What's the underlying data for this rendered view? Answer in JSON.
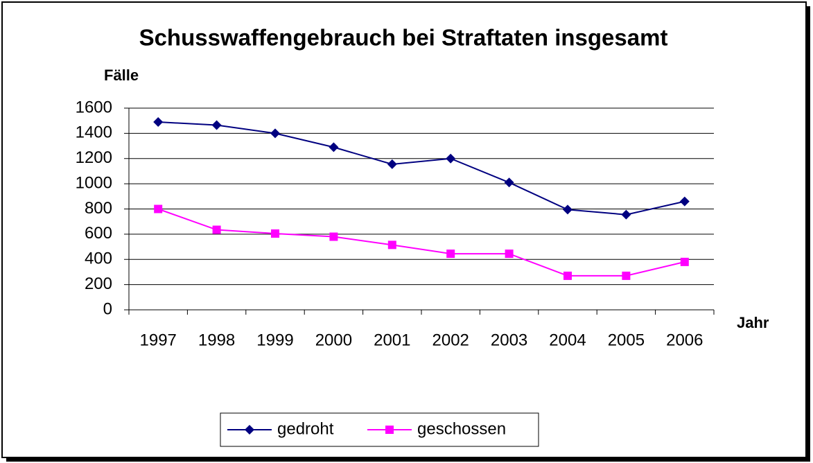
{
  "chart_data": {
    "type": "line",
    "title": "Schusswaffengebrauch bei Straftaten insgesamt",
    "y_label": "Fälle",
    "x_label": "Jahr",
    "categories": [
      "1997",
      "1998",
      "1999",
      "2000",
      "2001",
      "2002",
      "2003",
      "2004",
      "2005",
      "2006"
    ],
    "series": [
      {
        "name": "gedroht",
        "color": "#000080",
        "marker": "diamond",
        "values": [
          1490,
          1465,
          1400,
          1290,
          1155,
          1200,
          1010,
          795,
          755,
          860
        ]
      },
      {
        "name": "geschossen",
        "color": "#ff00ff",
        "marker": "square",
        "values": [
          800,
          635,
          605,
          580,
          515,
          445,
          445,
          270,
          270,
          380
        ]
      }
    ],
    "ylim": [
      0,
      1600
    ],
    "yticks": [
      0,
      200,
      400,
      600,
      800,
      1000,
      1200,
      1400,
      1600
    ],
    "grid": true,
    "legend": "bottom"
  }
}
